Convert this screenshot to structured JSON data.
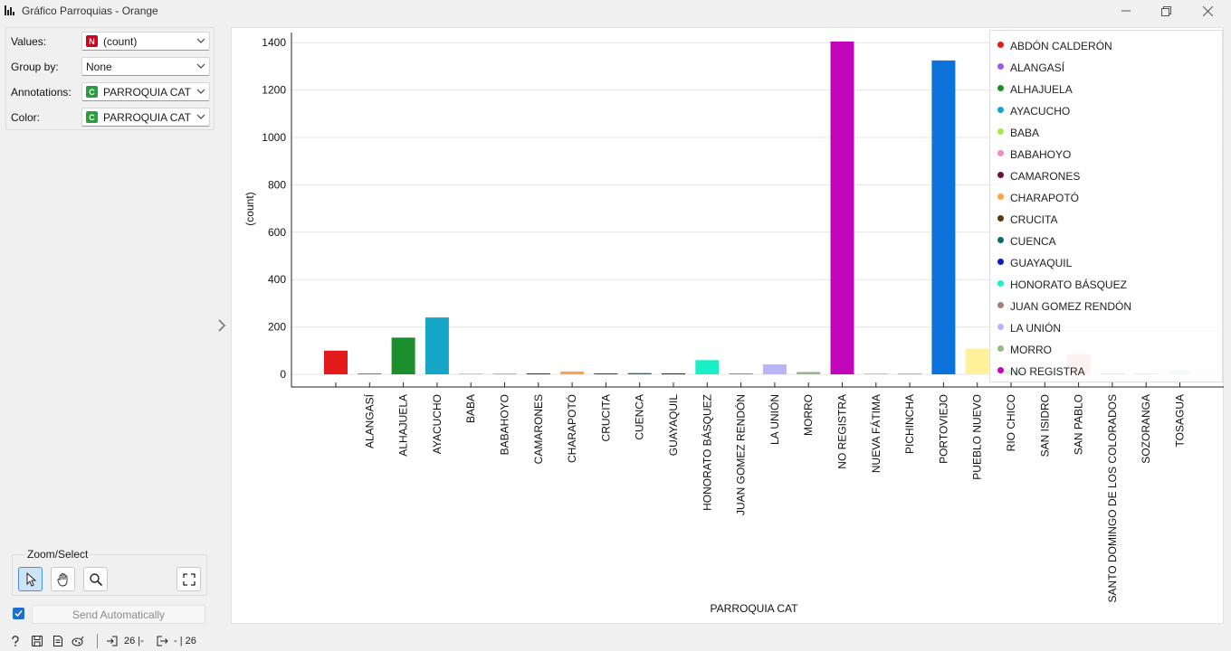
{
  "window": {
    "title": "Gráfico Parroquias - Orange"
  },
  "controls": {
    "values_label": "Values:",
    "values_tag": "N",
    "values_value": "(count)",
    "groupby_label": "Group by:",
    "groupby_value": "None",
    "annotations_label": "Annotations:",
    "annotations_tag": "C",
    "annotations_value": "PARROQUIA CAT",
    "color_label": "Color:",
    "color_tag": "C",
    "color_value": "PARROQUIA CAT"
  },
  "zoom": {
    "title": "Zoom/Select"
  },
  "send": {
    "checked": true,
    "label": "Send Automatically"
  },
  "status": {
    "inputs": "26 |-",
    "outputs": "- | 26"
  },
  "colors": {
    "numeric_tag": "#d0021b",
    "categorical_tag": "#2a9d3c"
  },
  "chart_data": {
    "type": "bar",
    "xlabel": "PARROQUIA CAT",
    "ylabel": "(count)",
    "ylim": [
      0,
      1450
    ],
    "yticks": [
      0,
      200,
      400,
      600,
      800,
      1000,
      1200,
      1400
    ],
    "grid": true,
    "legend_position": "top-right",
    "categories": [
      "ABDÓN CALDERÓN",
      "ALANGASÍ",
      "ALHAJUELA",
      "AYACUCHO",
      "BABA",
      "BABAHOYO",
      "CAMARONES",
      "CHARAPOTÓ",
      "CRUCITA",
      "CUENCA",
      "GUAYAQUIL",
      "HONORATO BÁSQUEZ",
      "JUAN GOMEZ RENDÓN",
      "LA UNIÓN",
      "MORRO",
      "NO REGISTRA",
      "NUEVA FÁTIMA",
      "PICHINCHA",
      "PORTOVIEJO",
      "PUEBLO NUEVO",
      "RIO CHICO",
      "SAN ISIDRO",
      "SAN PABLO",
      "SANTO DOMINGO DE LOS COLORADOS",
      "SOZORANGA",
      "TOSAGUA"
    ],
    "tick_labels": [
      "",
      "ALANGASÍ",
      "ALHAJUELA",
      "AYACUCHO",
      "BABA",
      "BABAHOYO",
      "CAMARONES",
      "CHARAPOTÓ",
      "CRUCITA",
      "CUENCA",
      "GUAYAQUIL",
      "HONORATO BÁSQUEZ",
      "JUAN GOMEZ RENDÓN",
      "LA UNIÓN",
      "MORRO",
      "NO REGISTRA",
      "NUEVA FÁTIMA",
      "PICHINCHA",
      "PORTOVIEJO",
      "PUEBLO NUEVO",
      "RIO CHICO",
      "SAN ISIDRO",
      "SAN PABLO",
      "SANTO DOMINGO DE LOS COLORADOS",
      "SOZORANGA",
      "TOSAGUA"
    ],
    "values": [
      100,
      1,
      155,
      240,
      1,
      1,
      1,
      12,
      1,
      5,
      1,
      60,
      1,
      42,
      10,
      1405,
      1,
      1,
      1325,
      108,
      15,
      1,
      85,
      1,
      1,
      18
    ],
    "colors": [
      "#e31a1c",
      "#9b59e6",
      "#1a8f2b",
      "#16a6c8",
      "#a8e65c",
      "#f58ac0",
      "#6b1040",
      "#ffa347",
      "#5a3a0a",
      "#0f6b66",
      "#0b1bc8",
      "#1af0c8",
      "#a0807a",
      "#b8b4f5",
      "#98b88a",
      "#c006b8",
      "#c2c2c2",
      "#d9a87d",
      "#0a72d8",
      "#fff29a",
      "#2db55a",
      "#d7c7a4",
      "#f4b6b0",
      "#5d5d5d",
      "#8a8a8a",
      "#c4eaf5"
    ],
    "legend_entries": [
      "ABDÓN CALDERÓN",
      "ALANGASÍ",
      "ALHAJUELA",
      "AYACUCHO",
      "BABA",
      "BABAHOYO",
      "CAMARONES",
      "CHARAPOTÓ",
      "CRUCITA",
      "CUENCA",
      "GUAYAQUIL",
      "HONORATO BÁSQUEZ",
      "JUAN GOMEZ RENDÓN",
      "LA UNIÓN",
      "MORRO",
      "NO REGISTRA"
    ]
  }
}
